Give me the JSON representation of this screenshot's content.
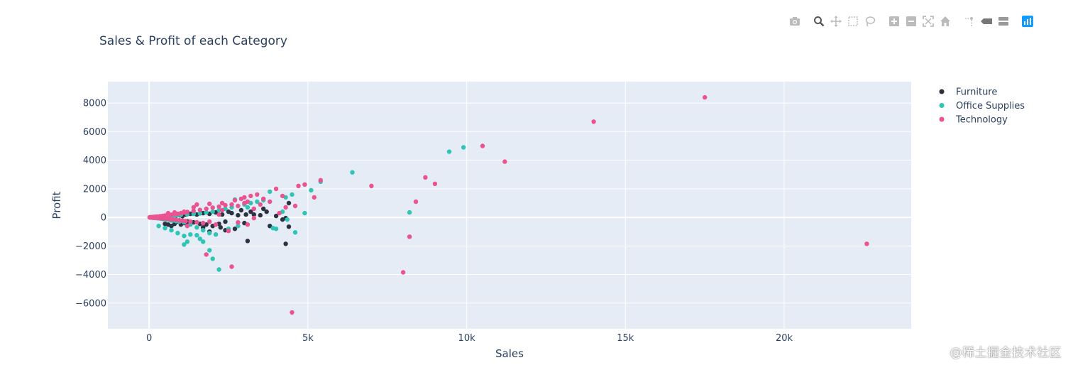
{
  "chart_data": {
    "type": "scatter",
    "title": "Sales & Profit of each Category",
    "xlabel": "Sales",
    "ylabel": "Profit",
    "xlim": [
      -1300,
      24000
    ],
    "ylim": [
      -7800,
      9500
    ],
    "x_ticks": [
      0,
      5000,
      10000,
      15000,
      20000
    ],
    "x_tick_labels": [
      "0",
      "5k",
      "10k",
      "15k",
      "20k"
    ],
    "y_ticks": [
      -6000,
      -4000,
      -2000,
      0,
      2000,
      4000,
      6000,
      8000
    ],
    "y_tick_labels": [
      "−6000",
      "−4000",
      "−2000",
      "0",
      "2000",
      "4000",
      "6000",
      "8000"
    ],
    "grid": true,
    "legend_position": "right",
    "series": [
      {
        "name": "Furniture",
        "color": "#2b3342",
        "points": [
          [
            30,
            5
          ],
          [
            60,
            -10
          ],
          [
            90,
            12
          ],
          [
            120,
            -20
          ],
          [
            150,
            25
          ],
          [
            180,
            -35
          ],
          [
            220,
            30
          ],
          [
            260,
            -40
          ],
          [
            300,
            40
          ],
          [
            350,
            -60
          ],
          [
            400,
            -80
          ],
          [
            450,
            50
          ],
          [
            500,
            -100
          ],
          [
            550,
            80
          ],
          [
            600,
            -130
          ],
          [
            650,
            60
          ],
          [
            700,
            -200
          ],
          [
            750,
            100
          ],
          [
            800,
            -250
          ],
          [
            850,
            120
          ],
          [
            900,
            -300
          ],
          [
            950,
            150
          ],
          [
            1000,
            -350
          ],
          [
            1050,
            90
          ],
          [
            1100,
            -400
          ],
          [
            1150,
            200
          ],
          [
            1200,
            -280
          ],
          [
            1300,
            250
          ],
          [
            1400,
            -350
          ],
          [
            1500,
            200
          ],
          [
            1600,
            -450
          ],
          [
            1700,
            300
          ],
          [
            1800,
            -500
          ],
          [
            1900,
            250
          ],
          [
            2000,
            -600
          ],
          [
            2100,
            350
          ],
          [
            2200,
            -450
          ],
          [
            2300,
            200
          ],
          [
            2400,
            -300
          ],
          [
            2500,
            400
          ],
          [
            2600,
            300
          ],
          [
            2700,
            -800
          ],
          [
            2800,
            150
          ],
          [
            2900,
            500
          ],
          [
            3000,
            -400
          ],
          [
            3050,
            200
          ],
          [
            3100,
            -1650
          ],
          [
            3200,
            400
          ],
          [
            3300,
            200
          ],
          [
            3500,
            150
          ],
          [
            3600,
            600
          ],
          [
            3700,
            400
          ],
          [
            3800,
            -600
          ],
          [
            4000,
            100
          ],
          [
            4200,
            -150
          ],
          [
            4300,
            -1850
          ],
          [
            4400,
            -650
          ],
          [
            4400,
            1000
          ],
          [
            4300,
            -50
          ],
          [
            500,
            -450
          ],
          [
            600,
            -500
          ],
          [
            700,
            -600
          ],
          [
            800,
            -450
          ],
          [
            1000,
            -500
          ],
          [
            1200,
            -550
          ],
          [
            1700,
            -700
          ],
          [
            1900,
            -1000
          ],
          [
            2400,
            -900
          ],
          [
            2250,
            -700
          ]
        ]
      },
      {
        "name": "Office Supplies",
        "color": "#2ec4b6",
        "points": [
          [
            20,
            -5
          ],
          [
            50,
            8
          ],
          [
            80,
            -15
          ],
          [
            110,
            15
          ],
          [
            140,
            -25
          ],
          [
            170,
            20
          ],
          [
            200,
            -40
          ],
          [
            240,
            35
          ],
          [
            280,
            -60
          ],
          [
            320,
            45
          ],
          [
            360,
            -80
          ],
          [
            400,
            60
          ],
          [
            450,
            -120
          ],
          [
            500,
            70
          ],
          [
            550,
            -150
          ],
          [
            600,
            90
          ],
          [
            650,
            -180
          ],
          [
            700,
            110
          ],
          [
            750,
            -220
          ],
          [
            800,
            130
          ],
          [
            850,
            -260
          ],
          [
            900,
            150
          ],
          [
            950,
            -300
          ],
          [
            1000,
            180
          ],
          [
            1100,
            -350
          ],
          [
            1200,
            220
          ],
          [
            1300,
            -500
          ],
          [
            1400,
            250
          ],
          [
            1500,
            -700
          ],
          [
            1600,
            280
          ],
          [
            1700,
            -900
          ],
          [
            1800,
            350
          ],
          [
            1900,
            -1100
          ],
          [
            2000,
            400
          ],
          [
            2100,
            -1200
          ],
          [
            2200,
            500
          ],
          [
            2400,
            600
          ],
          [
            2600,
            700
          ],
          [
            2800,
            -600
          ],
          [
            3000,
            900
          ],
          [
            3200,
            1000
          ],
          [
            3400,
            1100
          ],
          [
            3600,
            1200
          ],
          [
            3800,
            1800
          ],
          [
            4000,
            -800
          ],
          [
            4300,
            1400
          ],
          [
            4500,
            1600
          ],
          [
            4600,
            -1050
          ],
          [
            4900,
            300
          ],
          [
            5100,
            1900
          ],
          [
            5400,
            2500
          ],
          [
            6400,
            3150
          ],
          [
            8200,
            350
          ],
          [
            9450,
            4600
          ],
          [
            9900,
            4900
          ],
          [
            300,
            -600
          ],
          [
            500,
            -750
          ],
          [
            700,
            -900
          ],
          [
            900,
            -1100
          ],
          [
            1100,
            -1300
          ],
          [
            1200,
            -1700
          ],
          [
            1300,
            -1200
          ],
          [
            1600,
            -1500
          ],
          [
            1900,
            -2300
          ],
          [
            2000,
            -2900
          ],
          [
            2200,
            -3650
          ],
          [
            1100,
            -1900
          ],
          [
            1500,
            -1250
          ],
          [
            2500,
            -800
          ],
          [
            3100,
            700
          ],
          [
            3900,
            -750
          ],
          [
            4200,
            400
          ],
          [
            4350,
            -150
          ],
          [
            1700,
            -1700
          ],
          [
            2700,
            1250
          ]
        ]
      },
      {
        "name": "Technology",
        "color": "#ec5290",
        "points": [
          [
            15,
            3
          ],
          [
            40,
            -8
          ],
          [
            70,
            15
          ],
          [
            100,
            -10
          ],
          [
            130,
            30
          ],
          [
            160,
            -20
          ],
          [
            190,
            45
          ],
          [
            220,
            -30
          ],
          [
            260,
            60
          ],
          [
            300,
            -40
          ],
          [
            340,
            80
          ],
          [
            380,
            -60
          ],
          [
            420,
            100
          ],
          [
            460,
            -80
          ],
          [
            500,
            130
          ],
          [
            550,
            -100
          ],
          [
            600,
            160
          ],
          [
            650,
            -120
          ],
          [
            700,
            190
          ],
          [
            750,
            -150
          ],
          [
            800,
            220
          ],
          [
            850,
            -170
          ],
          [
            900,
            250
          ],
          [
            950,
            -200
          ],
          [
            1000,
            300
          ],
          [
            1050,
            -230
          ],
          [
            1100,
            340
          ],
          [
            1150,
            -260
          ],
          [
            1200,
            380
          ],
          [
            1300,
            -300
          ],
          [
            1400,
            450
          ],
          [
            1500,
            -350
          ],
          [
            1600,
            520
          ],
          [
            1700,
            -400
          ],
          [
            1800,
            600
          ],
          [
            1900,
            -300
          ],
          [
            2000,
            680
          ],
          [
            2100,
            -500
          ],
          [
            2200,
            750
          ],
          [
            2300,
            500
          ],
          [
            2400,
            850
          ],
          [
            2500,
            -950
          ],
          [
            2600,
            900
          ],
          [
            2700,
            1200
          ],
          [
            2800,
            -350
          ],
          [
            2900,
            1300
          ],
          [
            3000,
            1400
          ],
          [
            3100,
            -500
          ],
          [
            3200,
            1500
          ],
          [
            3400,
            1600
          ],
          [
            3600,
            1300
          ],
          [
            3800,
            1100
          ],
          [
            4000,
            2000
          ],
          [
            4200,
            1500
          ],
          [
            4500,
            -6650
          ],
          [
            4700,
            2200
          ],
          [
            4900,
            2300
          ],
          [
            5200,
            1400
          ],
          [
            5400,
            2600
          ],
          [
            7000,
            2200
          ],
          [
            8000,
            -3850
          ],
          [
            8200,
            -1350
          ],
          [
            8400,
            1100
          ],
          [
            8700,
            2800
          ],
          [
            9000,
            2350
          ],
          [
            10500,
            5000
          ],
          [
            11200,
            3900
          ],
          [
            14000,
            6700
          ],
          [
            17500,
            8400
          ],
          [
            22600,
            -1850
          ],
          [
            2600,
            -3450
          ],
          [
            1800,
            -2600
          ],
          [
            1200,
            -600
          ],
          [
            1500,
            900
          ],
          [
            1900,
            950
          ],
          [
            2300,
            1000
          ],
          [
            3000,
            1000
          ],
          [
            3300,
            600
          ],
          [
            3500,
            900
          ],
          [
            4100,
            300
          ],
          [
            4300,
            700
          ],
          [
            4600,
            800
          ],
          [
            1100,
            400
          ],
          [
            800,
            350
          ],
          [
            600,
            300
          ],
          [
            1400,
            700
          ],
          [
            2200,
            200
          ],
          [
            2800,
            800
          ],
          [
            3100,
            1100
          ],
          [
            3300,
            -50
          ]
        ]
      }
    ]
  },
  "modebar": {
    "icons": [
      "camera-icon",
      "zoom-icon",
      "pan-icon",
      "box-select-icon",
      "lasso-select-icon",
      "zoom-in-icon",
      "zoom-out-icon",
      "autoscale-icon",
      "reset-axes-icon",
      "spike-lines-icon",
      "hover-closest-icon",
      "hover-compare-icon",
      "plotly-logo-icon"
    ]
  },
  "watermark": "@稀土掘金技术社区"
}
